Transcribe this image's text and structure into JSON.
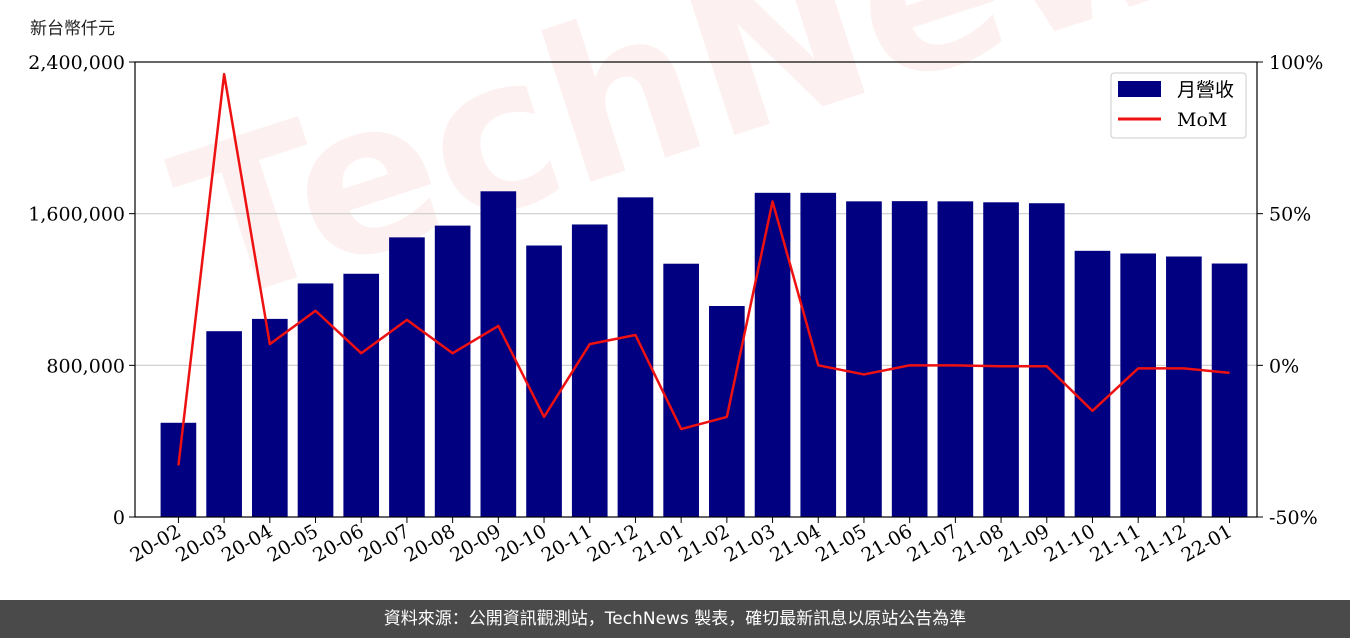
{
  "unit_label": "新台幣仟元",
  "footer_text": "資料來源：公開資訊觀測站，TechNews 製表，確切最新訊息以原站公告為準",
  "colors": {
    "bar": "#000080",
    "line": "#ee1111",
    "grid": "#cccccc",
    "footer_bg": "#4a4a4a"
  },
  "chart_data": {
    "type": "bar",
    "categories": [
      "20-02",
      "20-03",
      "20-04",
      "20-05",
      "20-06",
      "20-07",
      "20-08",
      "20-09",
      "20-10",
      "20-11",
      "20-12",
      "21-01",
      "21-02",
      "21-03",
      "21-04",
      "21-05",
      "21-06",
      "21-07",
      "21-08",
      "21-09",
      "21-10",
      "21-11",
      "21-12",
      "22-01"
    ],
    "series": [
      {
        "name": "月營收",
        "type": "bar",
        "axis": "left",
        "values": [
          497000,
          980000,
          1045000,
          1232000,
          1283000,
          1475000,
          1537000,
          1718000,
          1432000,
          1543000,
          1686000,
          1336000,
          1113000,
          1710000,
          1710000,
          1665000,
          1666000,
          1665000,
          1660000,
          1655000,
          1404000,
          1390000,
          1374000,
          1337000
        ]
      },
      {
        "name": "MoM",
        "type": "line",
        "axis": "right",
        "values": [
          -33,
          96,
          7,
          18,
          4,
          15,
          4,
          13,
          -17,
          7,
          10,
          -21,
          -17,
          54,
          0,
          -3,
          0,
          0,
          -0.3,
          -0.3,
          -15,
          -1,
          -1,
          -2.5
        ]
      }
    ],
    "y_left": {
      "lim": [
        0,
        2400000
      ],
      "ticks": [
        "0",
        "800,000",
        "1,600,000",
        "2,400,000"
      ],
      "tick_values": [
        0,
        800000,
        1600000,
        2400000
      ]
    },
    "y_right": {
      "lim": [
        -50,
        100
      ],
      "ticks": [
        "-50%",
        "0%",
        "50%",
        "100%"
      ],
      "tick_values": [
        -50,
        0,
        50,
        100
      ]
    },
    "grid": true,
    "legend_position": "top-right"
  }
}
